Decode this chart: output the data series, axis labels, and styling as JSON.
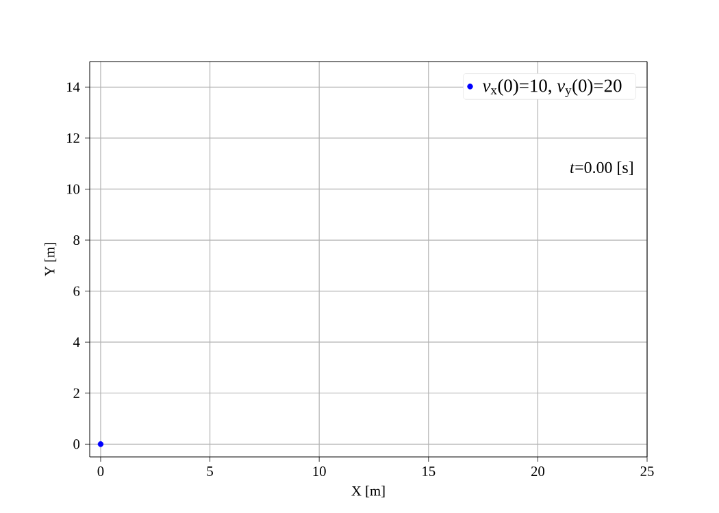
{
  "chart_data": {
    "type": "scatter",
    "xlabel": "X [m]",
    "ylabel": "Y [m]",
    "annotations": [
      "*t*=0.00 [s]"
    ],
    "series": [
      {
        "name": "*v*$_{x}$(0)=10, *v*$_{y}$(0)=20",
        "color": "#0000ff",
        "x": [
          0
        ],
        "values": [
          0
        ]
      }
    ],
    "xlim": [
      -0.5,
      25
    ],
    "ylim": [
      -0.5,
      15
    ],
    "xticks": [
      0,
      5,
      10,
      15,
      20,
      25
    ],
    "yticks": [
      0,
      2,
      4,
      6,
      8,
      10,
      12,
      14
    ],
    "grid": true,
    "legend": "top right",
    "marker": "circle"
  }
}
